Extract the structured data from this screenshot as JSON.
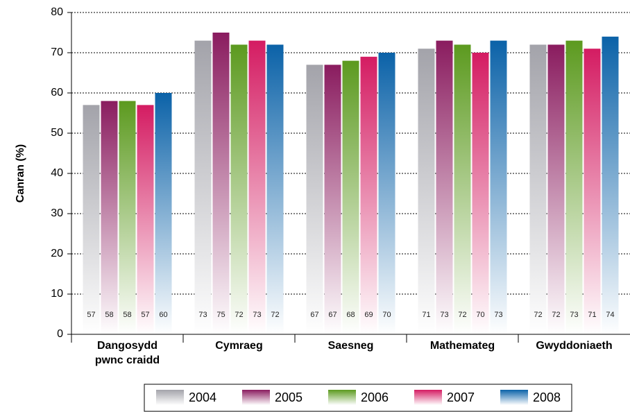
{
  "chart_data": {
    "type": "bar",
    "y_label": "Canran (%)",
    "categories": [
      "Dangosydd pwnc craidd",
      "Cymraeg",
      "Saesneg",
      "Mathemateg",
      "Gwyddoniaeth"
    ],
    "series": [
      {
        "name": "2004",
        "color": "#a3a3aa",
        "values": [
          57,
          73,
          67,
          71,
          72
        ]
      },
      {
        "name": "2005",
        "color": "#8a1c5f",
        "values": [
          58,
          75,
          67,
          73,
          72
        ]
      },
      {
        "name": "2006",
        "color": "#5c9a1f",
        "values": [
          58,
          72,
          68,
          72,
          73
        ]
      },
      {
        "name": "2007",
        "color": "#d41c62",
        "values": [
          57,
          73,
          69,
          70,
          71
        ]
      },
      {
        "name": "2008",
        "color": "#0b62a8",
        "values": [
          60,
          72,
          70,
          73,
          74
        ]
      }
    ],
    "ylim": [
      0,
      80
    ],
    "yticks": [
      0,
      10,
      20,
      30,
      40,
      50,
      60,
      70,
      80
    ],
    "grid": true,
    "legend": "bottom"
  }
}
